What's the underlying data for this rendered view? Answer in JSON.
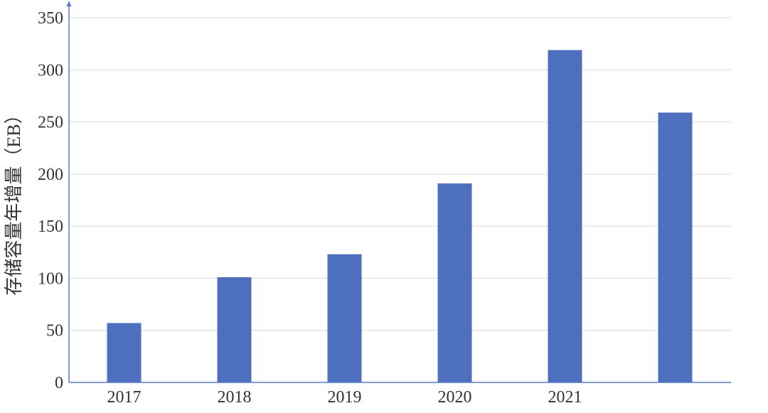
{
  "chart_data": {
    "type": "bar",
    "categories": [
      "2017",
      "2018",
      "2019",
      "2020",
      "2021",
      ""
    ],
    "values": [
      57,
      101,
      123,
      191,
      319,
      259
    ],
    "ylabel": "存储容量年增量（EB）",
    "xlabel": "",
    "ylim": [
      0,
      350
    ],
    "yticks": [
      0,
      50,
      100,
      150,
      200,
      250,
      300,
      350
    ],
    "grid": true,
    "legend": "none",
    "colors": {
      "bar": "#4d6fbe",
      "grid": "#d9d9d9",
      "axis": "#5b7bc8",
      "text": "#333333"
    }
  }
}
